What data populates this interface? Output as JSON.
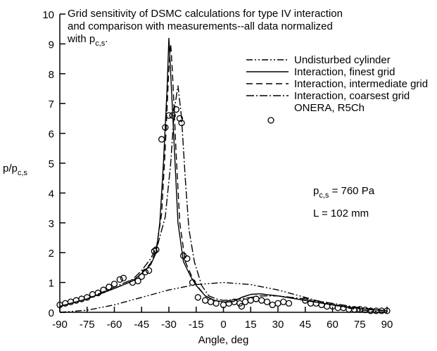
{
  "chart_data": {
    "type": "line",
    "title": [
      {
        "text": "Grid sensitivity of DSMC calculations for type IV interaction"
      },
      {
        "text": "and comparison with measurements--all data normalized"
      },
      {
        "text": "with p",
        "sub": "c,s",
        "tail": "."
      }
    ],
    "x_label": "Angle, deg",
    "y_label": {
      "text": "p/p",
      "sub": "c,s"
    },
    "annotations": [
      {
        "text": "p",
        "sub": "c,s",
        "tail": " = 760 Pa"
      },
      {
        "text": "L = 102 mm"
      }
    ],
    "xlim": [
      -90,
      90
    ],
    "xticks": [
      -90,
      -75,
      -60,
      -45,
      -30,
      -15,
      0,
      15,
      30,
      45,
      60,
      75,
      90
    ],
    "ylim": [
      0,
      10
    ],
    "yticks": [
      0,
      1,
      2,
      3,
      4,
      5,
      6,
      7,
      8,
      9,
      10
    ],
    "legend": "top-right",
    "series": [
      {
        "name": "Undisturbed cylinder",
        "color": "#000000",
        "dash": "dash-dot-dot",
        "x": [
          -90,
          -75,
          -60,
          -45,
          -30,
          -15,
          0,
          15,
          30,
          45,
          60,
          75,
          90
        ],
        "values": [
          0,
          0.07,
          0.25,
          0.5,
          0.75,
          0.93,
          1,
          0.93,
          0.75,
          0.5,
          0.25,
          0.07,
          0
        ]
      },
      {
        "name": "Interaction, finest grid",
        "color": "#000000",
        "dash": "solid",
        "x": [
          -90,
          -75,
          -60,
          -50,
          -45,
          -40,
          -37,
          -35,
          -33,
          -31,
          -30,
          -29,
          -27,
          -25,
          -22,
          -18,
          -15,
          -10,
          -5,
          0,
          5,
          10,
          15,
          20,
          30,
          45,
          60,
          75,
          90
        ],
        "values": [
          0.2,
          0.45,
          0.8,
          1.05,
          1.3,
          1.6,
          2.0,
          3.0,
          5.0,
          7.5,
          9.2,
          8.0,
          5.5,
          3.0,
          1.7,
          1.2,
          0.9,
          0.55,
          0.4,
          0.35,
          0.35,
          0.5,
          0.6,
          0.62,
          0.55,
          0.4,
          0.25,
          0.12,
          0.05
        ]
      },
      {
        "name": "Interaction, intermediate grid",
        "color": "#000000",
        "dash": "dash",
        "x": [
          -90,
          -75,
          -60,
          -50,
          -45,
          -40,
          -37,
          -34,
          -32,
          -30,
          -29,
          -28,
          -26,
          -24,
          -21,
          -17,
          -14,
          -10,
          -5,
          0,
          5,
          10,
          15,
          20,
          30,
          45,
          60,
          75,
          90
        ],
        "values": [
          0.2,
          0.45,
          0.8,
          1.05,
          1.3,
          1.65,
          2.1,
          3.3,
          5.5,
          8.2,
          9.0,
          8.0,
          5.3,
          3.0,
          1.7,
          1.15,
          0.85,
          0.55,
          0.4,
          0.35,
          0.35,
          0.5,
          0.6,
          0.62,
          0.55,
          0.4,
          0.25,
          0.12,
          0.05
        ]
      },
      {
        "name": "Interaction, coarsest grid",
        "color": "#000000",
        "dash": "dash-dot",
        "x": [
          -90,
          -75,
          -60,
          -50,
          -45,
          -40,
          -36,
          -32,
          -29,
          -27,
          -25,
          -23,
          -21,
          -19,
          -16,
          -12,
          -8,
          -4,
          0,
          10,
          20,
          30,
          45,
          60,
          75,
          90
        ],
        "values": [
          0.2,
          0.45,
          0.85,
          1.1,
          1.4,
          1.8,
          2.3,
          3.2,
          5,
          6.8,
          7.6,
          6.5,
          4.5,
          2.8,
          1.7,
          0.9,
          0.55,
          0.45,
          0.4,
          0.45,
          0.55,
          0.55,
          0.45,
          0.3,
          0.15,
          0.05
        ]
      },
      {
        "name": "ONERA, R5Ch",
        "color": "#000000",
        "marker": "circle",
        "x": [
          -90,
          -87,
          -84,
          -81,
          -78,
          -75,
          -72,
          -69,
          -66,
          -63,
          -60,
          -57,
          -55,
          -50,
          -47,
          -45,
          -43,
          -41,
          -38,
          -37,
          -34,
          -32,
          -30,
          -28,
          -26,
          -24,
          -23,
          -22,
          -20,
          -17,
          -14,
          -10,
          -7,
          -4,
          0,
          3,
          6,
          9,
          10,
          12,
          15,
          18,
          21,
          24,
          27,
          30,
          33,
          36,
          45,
          48,
          51,
          54,
          57,
          60,
          63,
          66,
          69,
          72,
          75,
          78,
          81,
          84,
          87,
          90
        ],
        "values": [
          0.25,
          0.3,
          0.35,
          0.4,
          0.45,
          0.5,
          0.6,
          0.65,
          0.75,
          0.85,
          0.95,
          1.1,
          1.15,
          1.0,
          1.05,
          1.2,
          1.35,
          1.4,
          2.05,
          2.1,
          5.8,
          6.2,
          6.6,
          6.6,
          6.8,
          6.5,
          6.35,
          1.9,
          1.8,
          1.0,
          0.5,
          0.4,
          0.35,
          0.3,
          0.25,
          0.3,
          0.35,
          0.3,
          0.2,
          0.35,
          0.4,
          0.45,
          0.4,
          0.35,
          0.25,
          0.3,
          0.35,
          0.3,
          0.4,
          0.3,
          0.3,
          0.25,
          0.2,
          0.2,
          0.15,
          0.15,
          0.1,
          0.1,
          0.1,
          0.08,
          0.05,
          0.05,
          0.05,
          0.05
        ]
      }
    ]
  }
}
